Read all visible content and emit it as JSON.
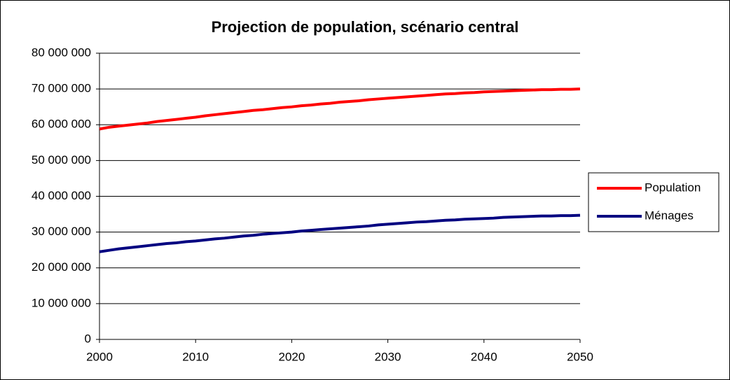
{
  "chart_data": {
    "type": "line",
    "title": "Projection de population, scénario central",
    "x": [
      2000,
      2001,
      2002,
      2003,
      2004,
      2005,
      2006,
      2007,
      2008,
      2009,
      2010,
      2011,
      2012,
      2013,
      2014,
      2015,
      2016,
      2017,
      2018,
      2019,
      2020,
      2021,
      2022,
      2023,
      2024,
      2025,
      2026,
      2027,
      2028,
      2029,
      2030,
      2031,
      2032,
      2033,
      2034,
      2035,
      2036,
      2037,
      2038,
      2039,
      2040,
      2041,
      2042,
      2043,
      2044,
      2045,
      2046,
      2047,
      2048,
      2049,
      2050
    ],
    "series": [
      {
        "name": "Population",
        "color": "#ff0000",
        "values": [
          58800000,
          59300000,
          59600000,
          59900000,
          60200000,
          60500000,
          60900000,
          61200000,
          61500000,
          61800000,
          62100000,
          62500000,
          62800000,
          63100000,
          63400000,
          63700000,
          64000000,
          64200000,
          64500000,
          64800000,
          65000000,
          65300000,
          65500000,
          65800000,
          66000000,
          66300000,
          66500000,
          66700000,
          67000000,
          67200000,
          67400000,
          67600000,
          67800000,
          68000000,
          68200000,
          68400000,
          68600000,
          68700000,
          68900000,
          69000000,
          69200000,
          69300000,
          69400000,
          69500000,
          69600000,
          69700000,
          69800000,
          69800000,
          69900000,
          69900000,
          70000000
        ]
      },
      {
        "name": "Ménages",
        "color": "#000080",
        "values": [
          24500000,
          24900000,
          25300000,
          25600000,
          25900000,
          26200000,
          26500000,
          26800000,
          27000000,
          27300000,
          27500000,
          27800000,
          28100000,
          28300000,
          28600000,
          28900000,
          29100000,
          29400000,
          29600000,
          29800000,
          30000000,
          30300000,
          30500000,
          30700000,
          30900000,
          31100000,
          31300000,
          31500000,
          31700000,
          32000000,
          32200000,
          32400000,
          32600000,
          32800000,
          32900000,
          33100000,
          33300000,
          33400000,
          33600000,
          33700000,
          33800000,
          33900000,
          34100000,
          34200000,
          34300000,
          34400000,
          34500000,
          34500000,
          34600000,
          34600000,
          34700000
        ]
      }
    ],
    "xlim": [
      2000,
      2050
    ],
    "xticks": [
      2000,
      2010,
      2020,
      2030,
      2040,
      2050
    ],
    "ylim": [
      0,
      80000000
    ],
    "yticks": [
      0,
      {
        "value": 10000000,
        "label": "10 000 000"
      },
      {
        "value": 20000000,
        "label": "20 000 000"
      },
      {
        "value": 30000000,
        "label": "30 000 000"
      },
      {
        "value": 40000000,
        "label": "40 000 000"
      },
      {
        "value": 50000000,
        "label": "50 000 000"
      },
      {
        "value": 60000000,
        "label": "60 000 000"
      },
      {
        "value": 70000000,
        "label": "70 000 000"
      },
      {
        "value": 80000000,
        "label": "80 000 000"
      }
    ],
    "grid": true,
    "legend": "right"
  }
}
